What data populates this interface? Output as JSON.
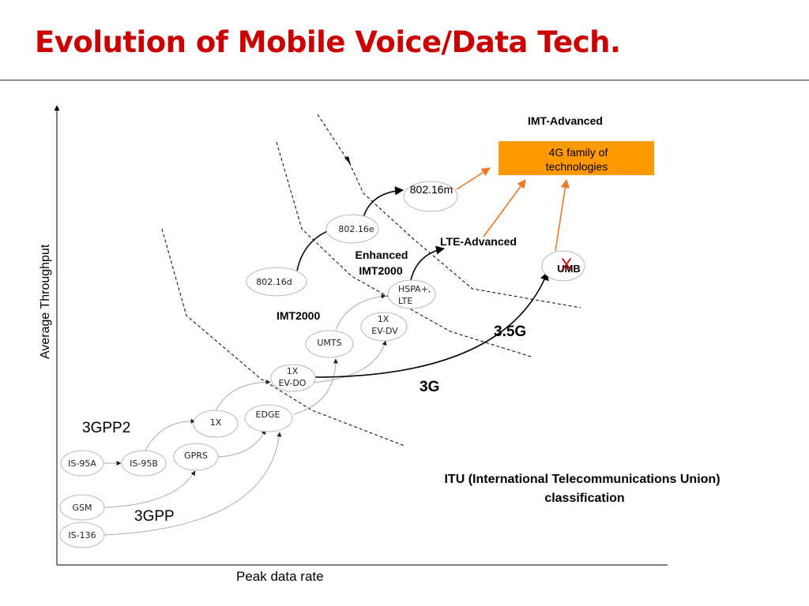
{
  "title": "Evolution of Mobile Voice/Data Tech.",
  "axes": {
    "y_label": "Average Throughput",
    "x_label": "Peak data rate"
  },
  "nodes": {
    "is95a": "IS-95A",
    "is95b": "IS-95B",
    "gsm": "GSM",
    "is136": "IS-136",
    "gprs": "GPRS",
    "onex": "1X",
    "edge": "EDGE",
    "evdo": [
      "1X",
      "EV-DO"
    ],
    "umts": "UMTS",
    "evdv": [
      "1X",
      "EV-DV"
    ],
    "hspa": [
      "HSPA+,",
      "LTE"
    ],
    "d80216d": "802.16d",
    "d80216e": "802.16e",
    "d80216m": "802.16m",
    "umb": "UMB"
  },
  "labels": {
    "gpp2": "3GPP2",
    "gpp": "3GPP",
    "imt2000": "IMT2000",
    "enhanced_imt2000": [
      "Enhanced",
      "IMT2000"
    ],
    "lte_advanced": "LTE-Advanced",
    "imt_advanced": "IMT-Advanced",
    "gen_3g": "3G",
    "gen_35g": "3.5G",
    "umb_cross": "X",
    "itu": [
      "ITU (International Telecommunications Union)",
      "classification"
    ]
  },
  "box_4g": [
    "4G family of",
    "technologies"
  ],
  "colors": {
    "title": "#cc0000",
    "box_4g": "#ff9900",
    "orange_arrow": "#f07820",
    "umb_cross": "#cc0000"
  }
}
